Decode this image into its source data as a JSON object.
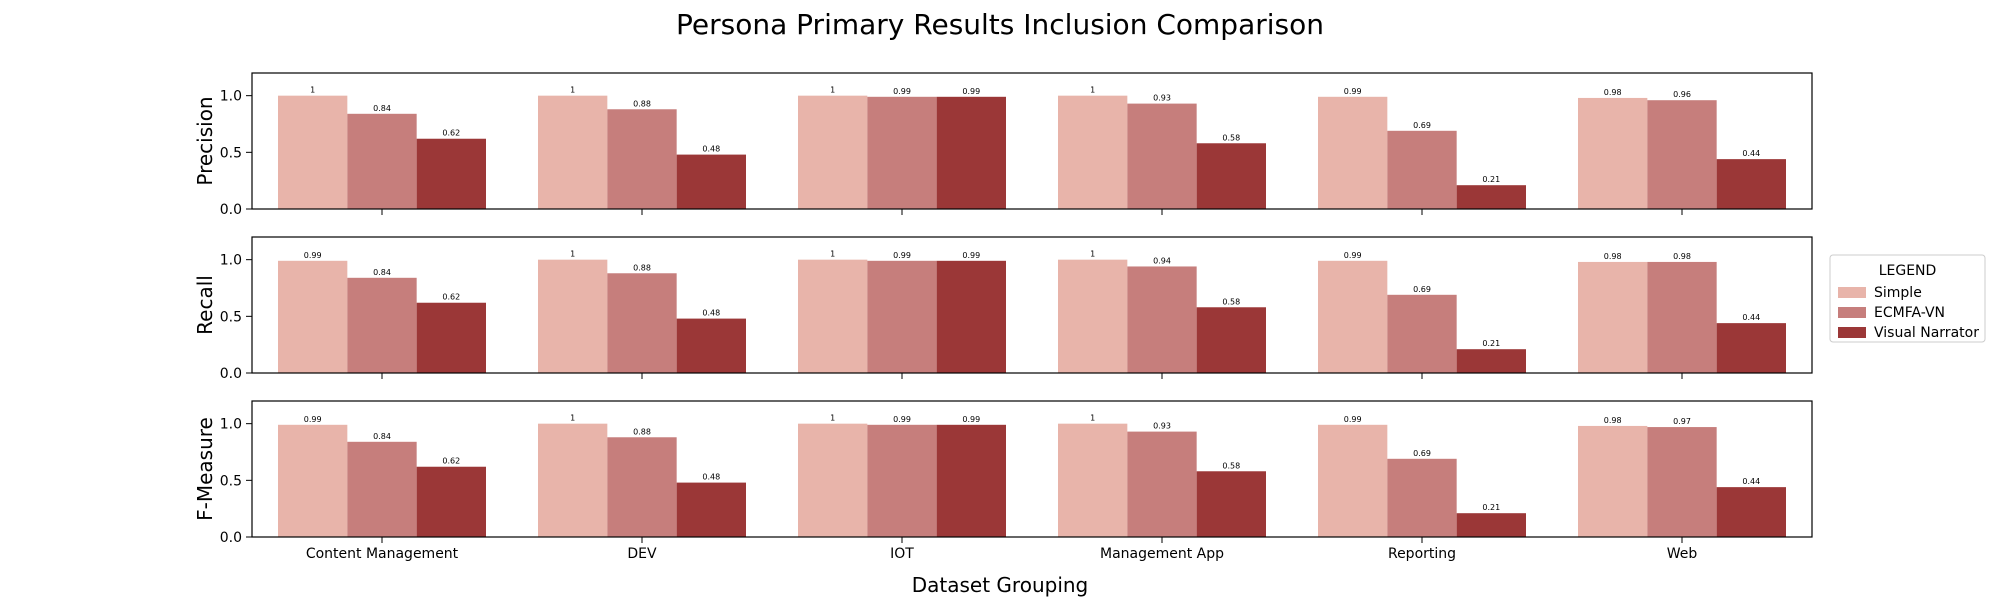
{
  "chart_data": {
    "type": "bar",
    "title": "Persona Primary Results Inclusion Comparison",
    "xlabel": "Dataset Grouping",
    "categories": [
      "Content Management",
      "DEV",
      "IOT",
      "Management App",
      "Reporting",
      "Web"
    ],
    "ylim": [
      0,
      1.2
    ],
    "yticks": [
      0.0,
      0.5,
      1.0
    ],
    "grid": false,
    "legend": {
      "title": "LEGEND",
      "placement": "outside-right",
      "entries": [
        "Simple",
        "ECMFA-VN",
        "Visual Narrator"
      ]
    },
    "series_colors": [
      "#e8b4aa",
      "#c67e7c",
      "#9b3737"
    ],
    "subplots": [
      {
        "ylabel": "Precision",
        "series": [
          {
            "name": "Simple",
            "values": [
              1,
              1,
              1,
              1,
              0.99,
              0.98
            ]
          },
          {
            "name": "ECMFA-VN",
            "values": [
              0.84,
              0.88,
              0.99,
              0.93,
              0.69,
              0.96
            ]
          },
          {
            "name": "Visual Narrator",
            "values": [
              0.62,
              0.48,
              0.99,
              0.58,
              0.21,
              0.44
            ]
          }
        ]
      },
      {
        "ylabel": "Recall",
        "series": [
          {
            "name": "Simple",
            "values": [
              0.99,
              1,
              1,
              1,
              0.99,
              0.98
            ]
          },
          {
            "name": "ECMFA-VN",
            "values": [
              0.84,
              0.88,
              0.99,
              0.94,
              0.69,
              0.98
            ]
          },
          {
            "name": "Visual Narrator",
            "values": [
              0.62,
              0.48,
              0.99,
              0.58,
              0.21,
              0.44
            ]
          }
        ]
      },
      {
        "ylabel": "F-Measure",
        "series": [
          {
            "name": "Simple",
            "values": [
              0.99,
              1,
              1,
              1,
              0.99,
              0.98
            ]
          },
          {
            "name": "ECMFA-VN",
            "values": [
              0.84,
              0.88,
              0.99,
              0.93,
              0.69,
              0.97
            ]
          },
          {
            "name": "Visual Narrator",
            "values": [
              0.62,
              0.48,
              0.99,
              0.58,
              0.21,
              0.44
            ]
          }
        ]
      }
    ]
  }
}
